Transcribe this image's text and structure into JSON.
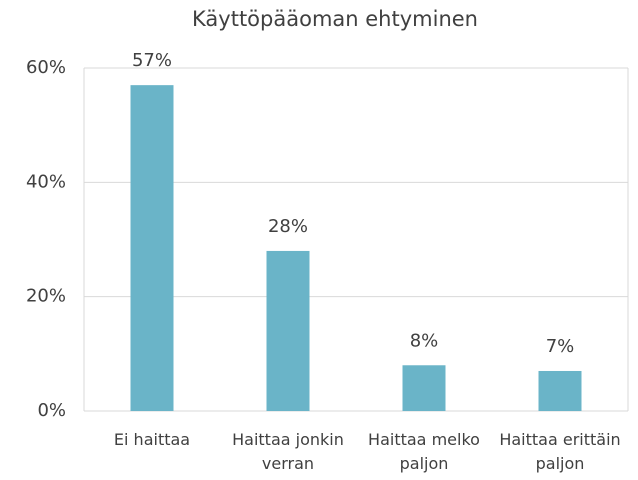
{
  "chart_data": {
    "type": "bar",
    "title": "Käyttöpääoman ehtyminen",
    "categories": [
      "Ei haittaa",
      "Haittaa jonkin verran",
      "Haittaa melko paljon",
      "Haittaa erittäin paljon"
    ],
    "values": [
      57,
      28,
      8,
      7
    ],
    "value_labels": [
      "57%",
      "28%",
      "8%",
      "7%"
    ],
    "color": "#6ab4c8",
    "ylim": [
      0,
      60
    ],
    "yticks": [
      {
        "value": 0,
        "label": "0%"
      },
      {
        "value": 20,
        "label": "20%"
      },
      {
        "value": 40,
        "label": "40%"
      },
      {
        "value": 60,
        "label": "60%"
      }
    ],
    "grid": true
  }
}
